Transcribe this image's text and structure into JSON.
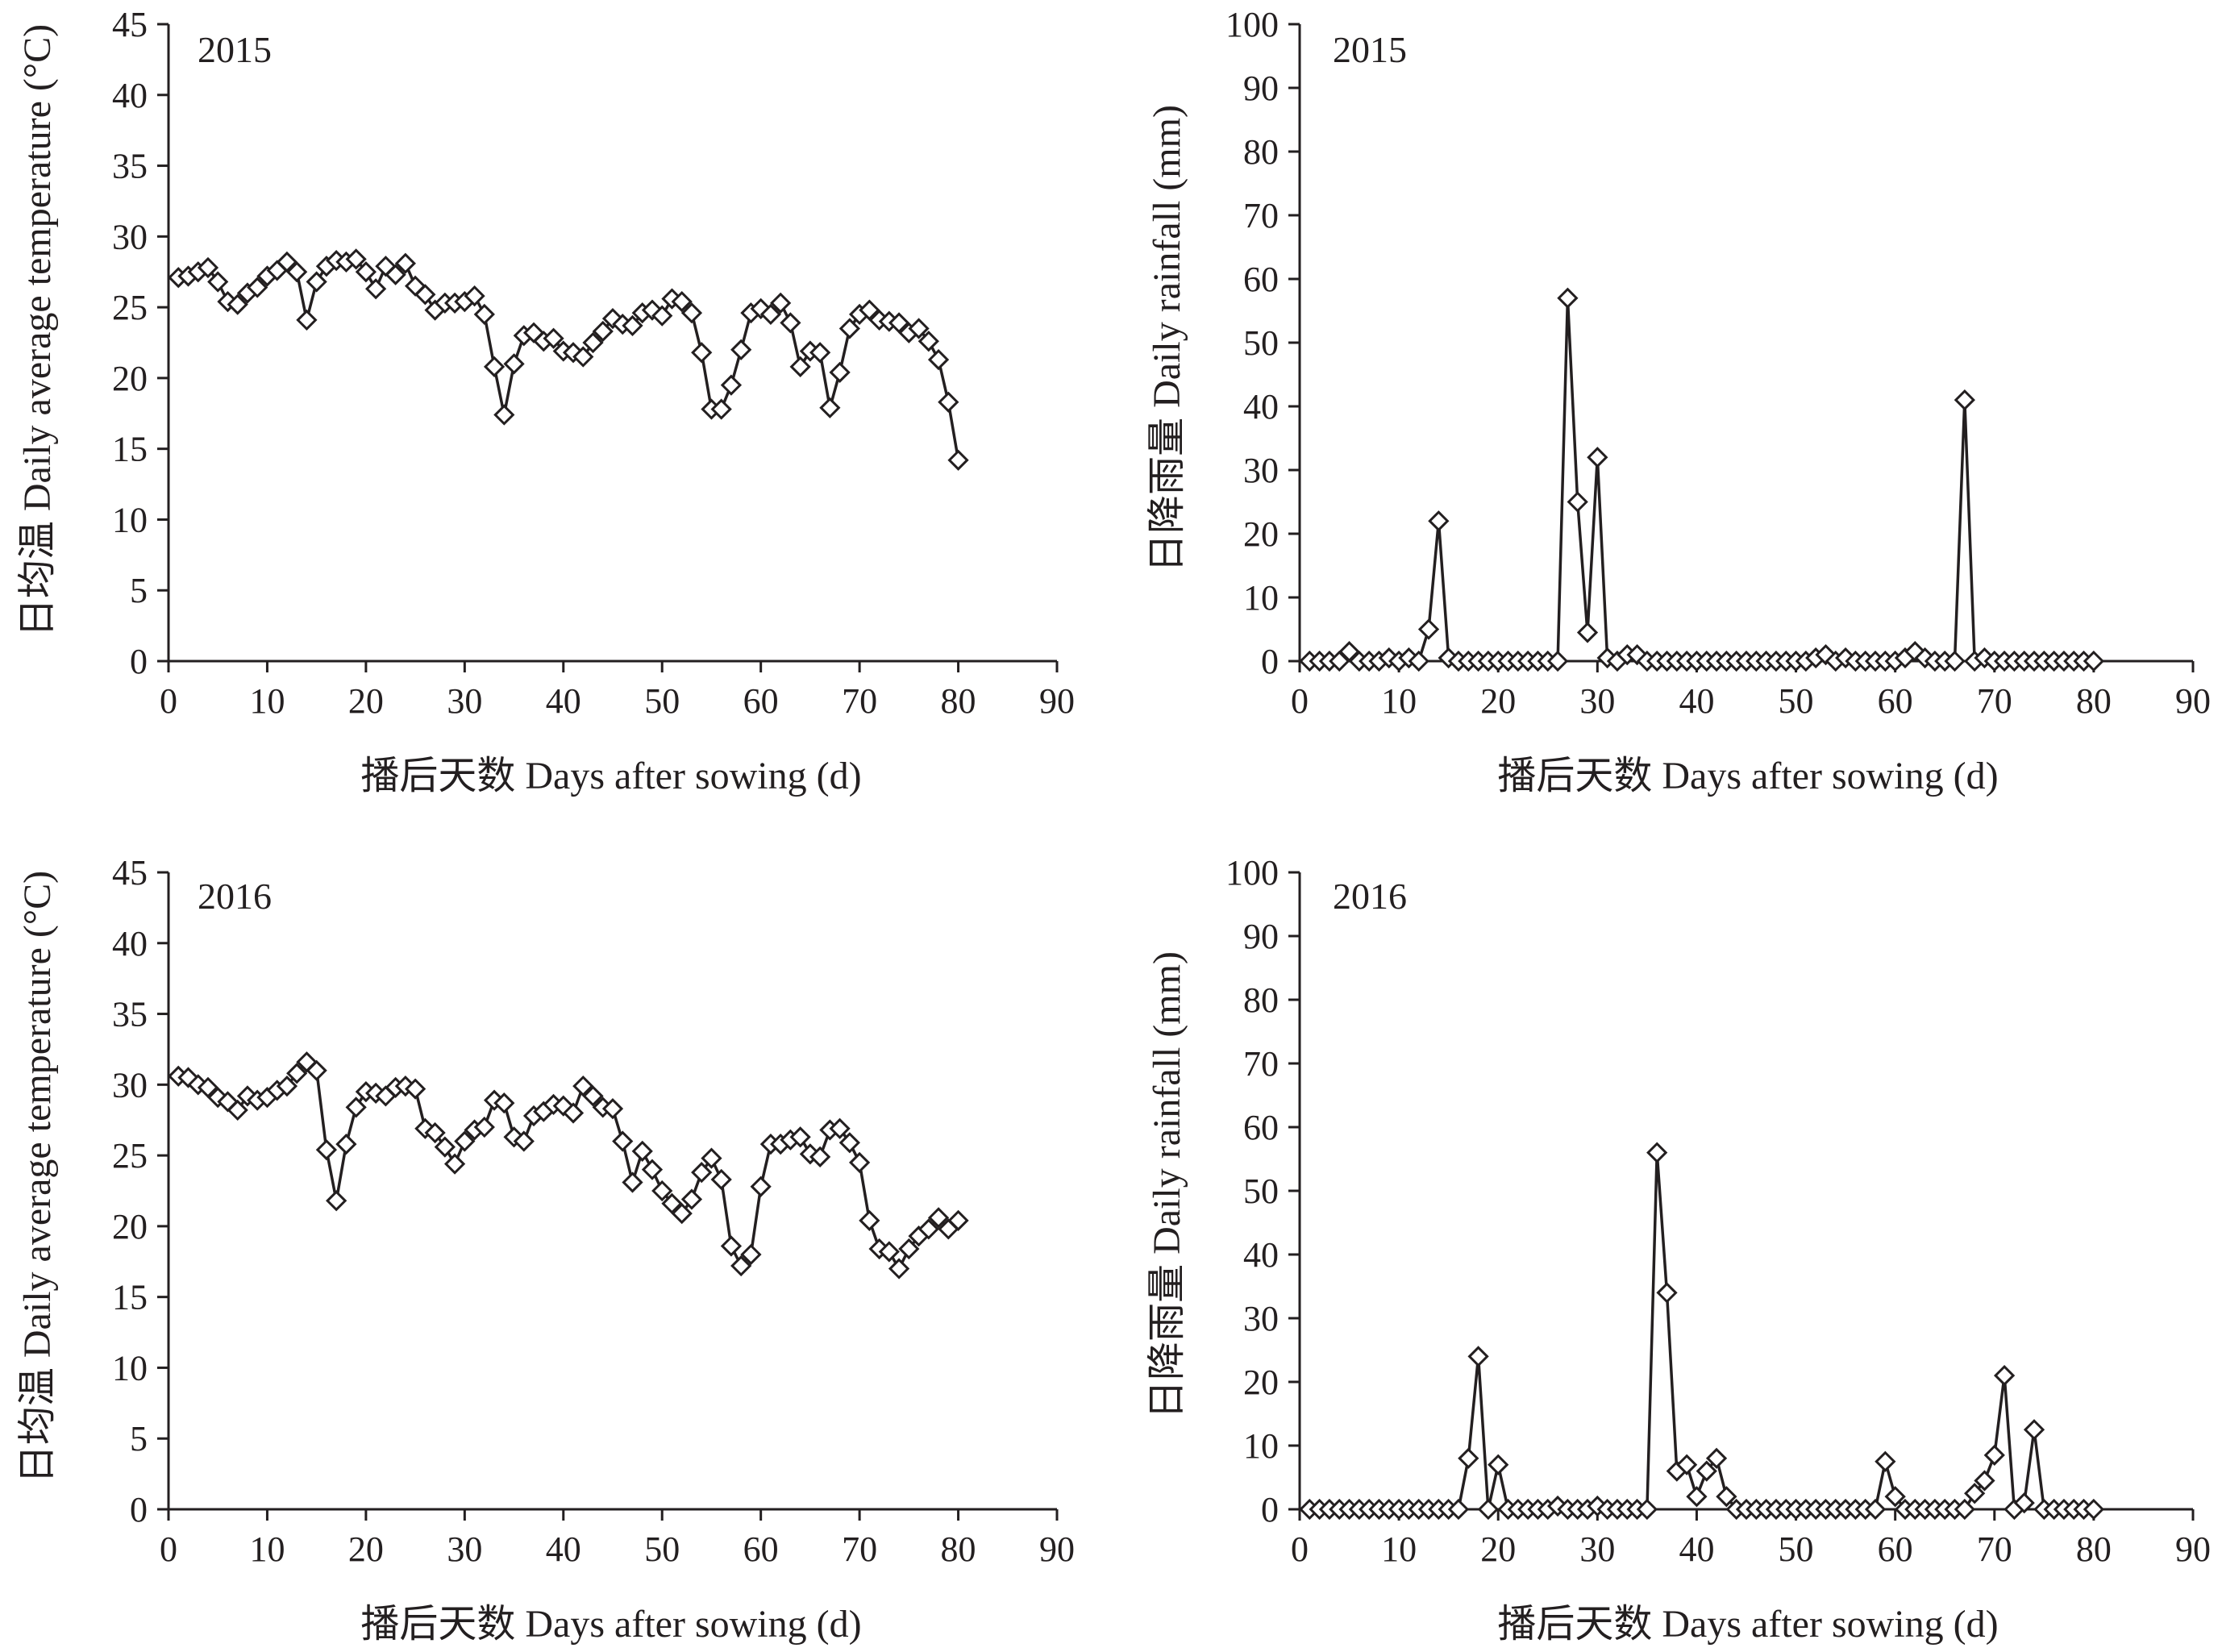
{
  "chart_data": [
    {
      "type": "line",
      "title": "2015",
      "xlabel": "播后天数 Days after sowing (d)",
      "ylabel": "日均温 Daily average temperature (°C)",
      "xlim": [
        0,
        90
      ],
      "ylim": [
        0,
        45
      ],
      "xticks": [
        0,
        10,
        20,
        30,
        40,
        50,
        60,
        70,
        80,
        90
      ],
      "yticks": [
        0,
        5,
        10,
        15,
        20,
        25,
        30,
        35,
        40,
        45
      ],
      "marker": "diamond",
      "series": [
        {
          "name": "Daily average temperature",
          "x": [
            1,
            2,
            3,
            4,
            5,
            6,
            7,
            8,
            9,
            10,
            11,
            12,
            13,
            14,
            15,
            16,
            17,
            18,
            19,
            20,
            21,
            22,
            23,
            24,
            25,
            26,
            27,
            28,
            29,
            30,
            31,
            32,
            33,
            34,
            35,
            36,
            37,
            38,
            39,
            40,
            41,
            42,
            43,
            44,
            45,
            46,
            47,
            48,
            49,
            50,
            51,
            52,
            53,
            54,
            55,
            56,
            57,
            58,
            59,
            60,
            61,
            62,
            63,
            64,
            65,
            66,
            67,
            68,
            69,
            70,
            71,
            72,
            73,
            74,
            75,
            76,
            77,
            78,
            79,
            80
          ],
          "y": [
            27.1,
            27.2,
            27.5,
            27.8,
            26.8,
            25.4,
            25.2,
            26.0,
            26.4,
            27.2,
            27.6,
            28.2,
            27.5,
            24.1,
            26.8,
            27.9,
            28.3,
            28.2,
            28.4,
            27.5,
            26.3,
            27.9,
            27.3,
            28.1,
            26.5,
            25.9,
            24.8,
            25.3,
            25.3,
            25.4,
            25.8,
            24.5,
            20.8,
            17.4,
            21.0,
            23.0,
            23.2,
            22.6,
            22.8,
            21.9,
            21.8,
            21.5,
            22.5,
            23.3,
            24.2,
            23.8,
            23.7,
            24.6,
            24.8,
            24.4,
            25.6,
            25.4,
            24.6,
            21.8,
            17.8,
            17.8,
            19.5,
            22.0,
            24.6,
            24.9,
            24.5,
            25.3,
            23.9,
            20.8,
            21.9,
            21.8,
            17.9,
            20.4,
            23.5,
            24.5,
            24.8,
            24.1,
            24.0,
            23.9,
            23.2,
            23.5,
            22.6,
            21.3,
            18.3,
            14.2
          ]
        }
      ]
    },
    {
      "type": "line",
      "title": "2015",
      "xlabel": "播后天数 Days after sowing (d)",
      "ylabel": "日降雨量 Daily rainfall (mm)",
      "xlim": [
        0,
        90
      ],
      "ylim": [
        0,
        100
      ],
      "xticks": [
        0,
        10,
        20,
        30,
        40,
        50,
        60,
        70,
        80,
        90
      ],
      "yticks": [
        0,
        10,
        20,
        30,
        40,
        50,
        60,
        70,
        80,
        90,
        100
      ],
      "marker": "diamond",
      "series": [
        {
          "name": "Daily rainfall",
          "x": [
            1,
            2,
            3,
            4,
            5,
            6,
            7,
            8,
            9,
            10,
            11,
            12,
            13,
            14,
            15,
            16,
            17,
            18,
            19,
            20,
            21,
            22,
            23,
            24,
            25,
            26,
            27,
            28,
            29,
            30,
            31,
            32,
            33,
            34,
            35,
            36,
            37,
            38,
            39,
            40,
            41,
            42,
            43,
            44,
            45,
            46,
            47,
            48,
            49,
            50,
            51,
            52,
            53,
            54,
            55,
            56,
            57,
            58,
            59,
            60,
            61,
            62,
            63,
            64,
            65,
            66,
            67,
            68,
            69,
            70,
            71,
            72,
            73,
            74,
            75,
            76,
            77,
            78,
            79,
            80
          ],
          "y": [
            0,
            0,
            0,
            0,
            1.5,
            0,
            0,
            0,
            0.5,
            0,
            0.5,
            0,
            5,
            22,
            0.5,
            0,
            0,
            0,
            0,
            0,
            0,
            0,
            0,
            0,
            0,
            0,
            57,
            25,
            4.5,
            32,
            0.5,
            0,
            1,
            1,
            0,
            0,
            0,
            0,
            0,
            0,
            0,
            0,
            0,
            0,
            0,
            0,
            0,
            0,
            0,
            0,
            0,
            0.5,
            1,
            0,
            0.5,
            0,
            0,
            0,
            0,
            0,
            0.5,
            1.5,
            0.5,
            0,
            0,
            0,
            41,
            0,
            0.5,
            0,
            0,
            0,
            0,
            0,
            0,
            0,
            0,
            0,
            0,
            0
          ]
        }
      ]
    },
    {
      "type": "line",
      "title": "2016",
      "xlabel": "播后天数 Days after sowing (d)",
      "ylabel": "日均温 Daily average temperature (°C)",
      "xlim": [
        0,
        90
      ],
      "ylim": [
        0,
        45
      ],
      "xticks": [
        0,
        10,
        20,
        30,
        40,
        50,
        60,
        70,
        80,
        90
      ],
      "yticks": [
        0,
        5,
        10,
        15,
        20,
        25,
        30,
        35,
        40,
        45
      ],
      "marker": "diamond",
      "series": [
        {
          "name": "Daily average temperature",
          "x": [
            1,
            2,
            3,
            4,
            5,
            6,
            7,
            8,
            9,
            10,
            11,
            12,
            13,
            14,
            15,
            16,
            17,
            18,
            19,
            20,
            21,
            22,
            23,
            24,
            25,
            26,
            27,
            28,
            29,
            30,
            31,
            32,
            33,
            34,
            35,
            36,
            37,
            38,
            39,
            40,
            41,
            42,
            43,
            44,
            45,
            46,
            47,
            48,
            49,
            50,
            51,
            52,
            53,
            54,
            55,
            56,
            57,
            58,
            59,
            60,
            61,
            62,
            63,
            64,
            65,
            66,
            67,
            68,
            69,
            70,
            71,
            72,
            73,
            74,
            75,
            76,
            77,
            78,
            79,
            80
          ],
          "y": [
            30.6,
            30.5,
            30.0,
            29.8,
            29.1,
            28.8,
            28.2,
            29.2,
            28.9,
            29.1,
            29.6,
            29.9,
            30.8,
            31.6,
            31.0,
            25.4,
            21.8,
            25.8,
            28.4,
            29.5,
            29.4,
            29.2,
            29.8,
            29.9,
            29.7,
            26.9,
            26.6,
            25.6,
            24.4,
            26.0,
            26.8,
            27.0,
            28.9,
            28.7,
            26.3,
            26.0,
            27.8,
            28.1,
            28.6,
            28.5,
            28.0,
            29.9,
            29.2,
            28.4,
            28.3,
            26.0,
            23.1,
            25.3,
            24.0,
            22.5,
            21.6,
            20.9,
            21.9,
            23.8,
            24.8,
            23.3,
            18.6,
            17.2,
            18.0,
            22.8,
            25.8,
            25.8,
            26.1,
            26.3,
            25.1,
            24.9,
            26.8,
            26.9,
            25.9,
            24.5,
            20.4,
            18.4,
            18.2,
            17.0,
            18.4,
            19.3,
            19.8,
            20.6,
            19.8,
            20.4
          ]
        }
      ]
    },
    {
      "type": "line",
      "title": "2016",
      "xlabel": "播后天数 Days after sowing (d)",
      "ylabel": "日降雨量 Daily rainfall (mm)",
      "xlim": [
        0,
        90
      ],
      "ylim": [
        0,
        100
      ],
      "xticks": [
        0,
        10,
        20,
        30,
        40,
        50,
        60,
        70,
        80,
        90
      ],
      "yticks": [
        0,
        10,
        20,
        30,
        40,
        50,
        60,
        70,
        80,
        90,
        100
      ],
      "marker": "diamond",
      "series": [
        {
          "name": "Daily rainfall",
          "x": [
            1,
            2,
            3,
            4,
            5,
            6,
            7,
            8,
            9,
            10,
            11,
            12,
            13,
            14,
            15,
            16,
            17,
            18,
            19,
            20,
            21,
            22,
            23,
            24,
            25,
            26,
            27,
            28,
            29,
            30,
            31,
            32,
            33,
            34,
            35,
            36,
            37,
            38,
            39,
            40,
            41,
            42,
            43,
            44,
            45,
            46,
            47,
            48,
            49,
            50,
            51,
            52,
            53,
            54,
            55,
            56,
            57,
            58,
            59,
            60,
            61,
            62,
            63,
            64,
            65,
            66,
            67,
            68,
            69,
            70,
            71,
            72,
            73,
            74,
            75,
            76,
            77,
            78,
            79,
            80
          ],
          "y": [
            0,
            0,
            0,
            0,
            0,
            0,
            0,
            0,
            0,
            0,
            0,
            0,
            0,
            0,
            0,
            0,
            8,
            24,
            0,
            7,
            0,
            0,
            0,
            0,
            0,
            0.5,
            0,
            0,
            0,
            0.5,
            0,
            0,
            0,
            0,
            0,
            56,
            34,
            6,
            7,
            2,
            6,
            8,
            2,
            0,
            0,
            0,
            0,
            0,
            0,
            0,
            0,
            0,
            0,
            0,
            0,
            0,
            0,
            0,
            7.5,
            2,
            0,
            0,
            0,
            0,
            0,
            0,
            0,
            2.5,
            4.5,
            8.5,
            21,
            0,
            1,
            12.5,
            0,
            0,
            0,
            0,
            0,
            0
          ]
        }
      ]
    }
  ]
}
